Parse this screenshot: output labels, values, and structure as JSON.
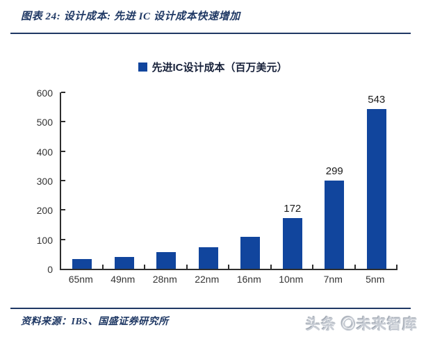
{
  "header": {
    "title": "图表 24: 设计成本: 先进 IC 设计成本快速增加"
  },
  "legend": {
    "label": "先进IC设计成本（百万美元）"
  },
  "chart_data": {
    "type": "bar",
    "title": "先进IC设计成本（百万美元）",
    "categories": [
      "65nm",
      "49nm",
      "28nm",
      "22nm",
      "16nm",
      "10nm",
      "7nm",
      "5nm"
    ],
    "values": [
      34,
      41,
      57,
      73,
      108,
      172,
      299,
      543
    ],
    "data_labels": [
      "",
      "",
      "",
      "",
      "",
      "172",
      "299",
      "543"
    ],
    "xlabel": "",
    "ylabel": "",
    "ylim": [
      0,
      600
    ],
    "yticks": [
      0,
      100,
      200,
      300,
      400,
      500,
      600
    ],
    "grid": false,
    "legend_position": "top",
    "bar_color": "#11459D"
  },
  "footer": {
    "source": "资料来源：IBS、国盛证券研究所",
    "watermark": "头条 ◎未来智库"
  },
  "colors": {
    "accent_navy": "#1F3864",
    "bar_blue": "#11459D",
    "axis_line": "#2E2E2E",
    "axis_text": "#333333",
    "value_label": "#1A1A1A"
  }
}
